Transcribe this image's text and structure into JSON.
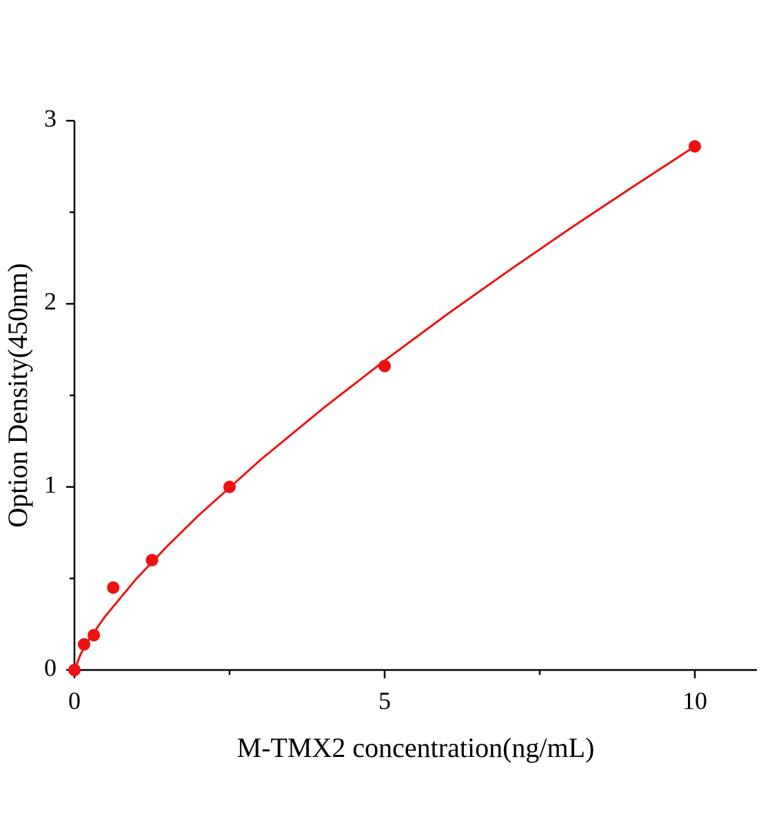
{
  "chart_data": {
    "type": "scatter",
    "x_label": "M-TMX2 concentration(ng/mL)",
    "y_label": "Option Density(450nm)",
    "xlim": [
      0,
      11
    ],
    "xticks": [
      0,
      5,
      10
    ],
    "xminorticks": [
      2.5,
      7.5
    ],
    "ylim": [
      0,
      3
    ],
    "yticks": [
      0,
      1,
      2,
      3
    ],
    "yminorticks": [
      0.5,
      1.5,
      2.5
    ],
    "series": [
      {
        "type": "scatter",
        "color": "#ee1111",
        "x": [
          0,
          0.156,
          0.3125,
          0.625,
          1.25,
          2.5,
          5,
          10
        ],
        "values": [
          0,
          0.14,
          0.19,
          0.45,
          0.6,
          1.0,
          1.66,
          2.86
        ]
      },
      {
        "type": "line",
        "color": "#ee1111",
        "x": [
          0,
          0.1,
          0.25,
          0.5,
          1,
          1.5,
          2,
          3,
          4,
          5,
          6,
          7,
          8,
          9,
          10
        ],
        "values": [
          0,
          0.087,
          0.175,
          0.295,
          0.499,
          0.678,
          0.844,
          1.148,
          1.427,
          1.69,
          1.941,
          2.181,
          2.414,
          2.639,
          2.86
        ]
      }
    ]
  }
}
